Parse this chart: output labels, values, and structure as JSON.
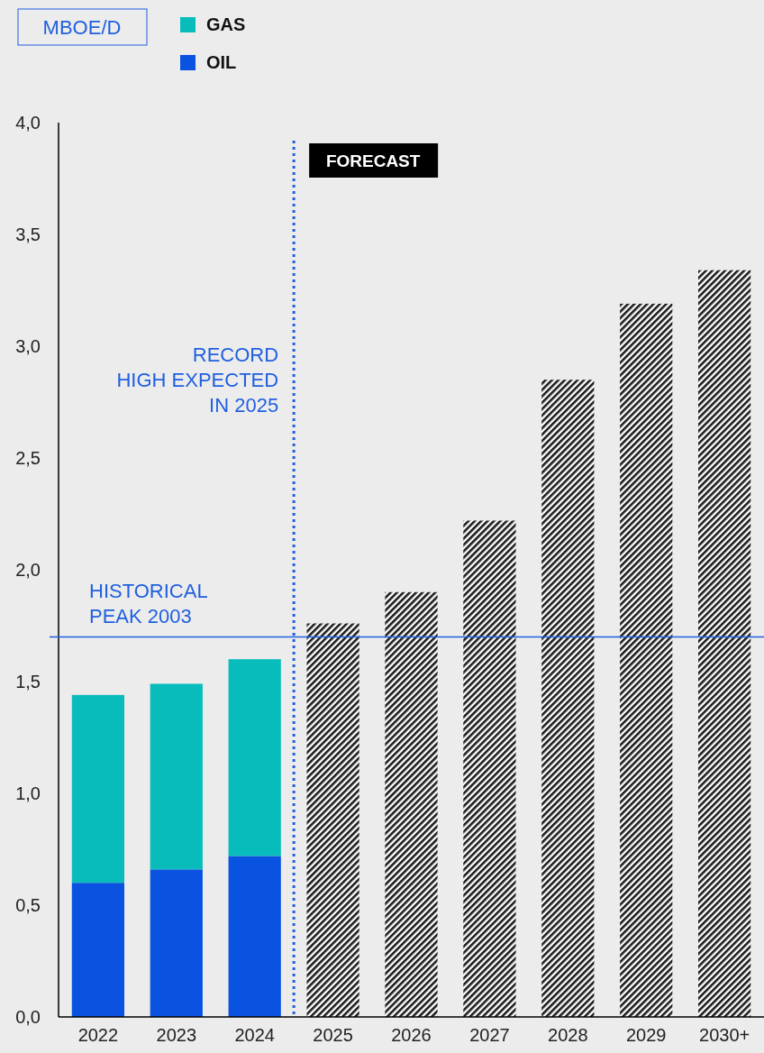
{
  "chart_data": {
    "type": "bar",
    "stacked": true,
    "ylabel": "MBOE/D",
    "categories": [
      "2022",
      "2023",
      "2024",
      "2025",
      "2026",
      "2027",
      "2028",
      "2029",
      "2030+"
    ],
    "series": [
      {
        "name": "OIL",
        "color": "#0a52e0",
        "values": [
          0.6,
          0.66,
          0.72,
          null,
          null,
          null,
          null,
          null,
          null
        ]
      },
      {
        "name": "GAS",
        "color": "#08bcbc",
        "values": [
          0.84,
          0.83,
          0.88,
          null,
          null,
          null,
          null,
          null,
          null
        ]
      },
      {
        "color": "#1a1a1a",
        "values": [
          null,
          null,
          null,
          1.76,
          1.9,
          2.22,
          2.85,
          3.19,
          3.34
        ]
      }
    ],
    "ylim": [
      0,
      4
    ],
    "yticks": [
      {
        "value": 0,
        "label": "0,0"
      },
      {
        "value": 0.5,
        "label": "0,5"
      },
      {
        "value": 1,
        "label": "1,0"
      },
      {
        "value": 1.5,
        "label": "1,5"
      },
      {
        "value": 2,
        "label": "2,0"
      },
      {
        "value": 2.5,
        "label": "2,5"
      },
      {
        "value": 3,
        "label": "3,0"
      },
      {
        "value": 3.5,
        "label": "3,5"
      },
      {
        "value": 4,
        "label": "4,0"
      }
    ],
    "ref_lines": [
      {
        "axis": "y",
        "value": 1.7,
        "label": "HISTORICAL\nPEAK 2003",
        "color": "#1f5fe0",
        "line_style": "solid"
      },
      {
        "axis": "x",
        "value": "2025",
        "label": "FORECAST",
        "color": "#1f5fe0",
        "line_style": "dotted"
      }
    ],
    "annotations": [
      "RECORD\nHIGH EXPECTED\nIN 2025"
    ],
    "legend": "top left",
    "grid": false
  }
}
